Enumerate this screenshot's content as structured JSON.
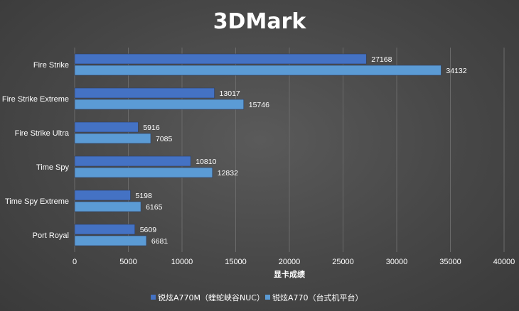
{
  "chart_data": {
    "type": "bar",
    "orientation": "horizontal",
    "title": "3DMark",
    "xlabel": "显卡成绩",
    "ylabel": "",
    "xlim": [
      0,
      40000
    ],
    "xticks": [
      0,
      5000,
      10000,
      15000,
      20000,
      25000,
      30000,
      35000,
      40000
    ],
    "categories": [
      "Fire Strike",
      "Fire Strike Extreme",
      "Fire Strike Ultra",
      "Time Spy",
      "Time Spy Extreme",
      "Port Royal"
    ],
    "series": [
      {
        "name": "锐炫A770M（蝰蛇峡谷NUC）",
        "color": "#4472c4",
        "values": [
          27168,
          13017,
          5916,
          10810,
          5198,
          5609
        ]
      },
      {
        "name": "锐炫A770（台式机平台）",
        "color": "#5b9bd5",
        "values": [
          34132,
          15746,
          7085,
          12832,
          6165,
          6681
        ]
      }
    ],
    "grid": true,
    "legend_position": "bottom",
    "data_labels": true
  }
}
